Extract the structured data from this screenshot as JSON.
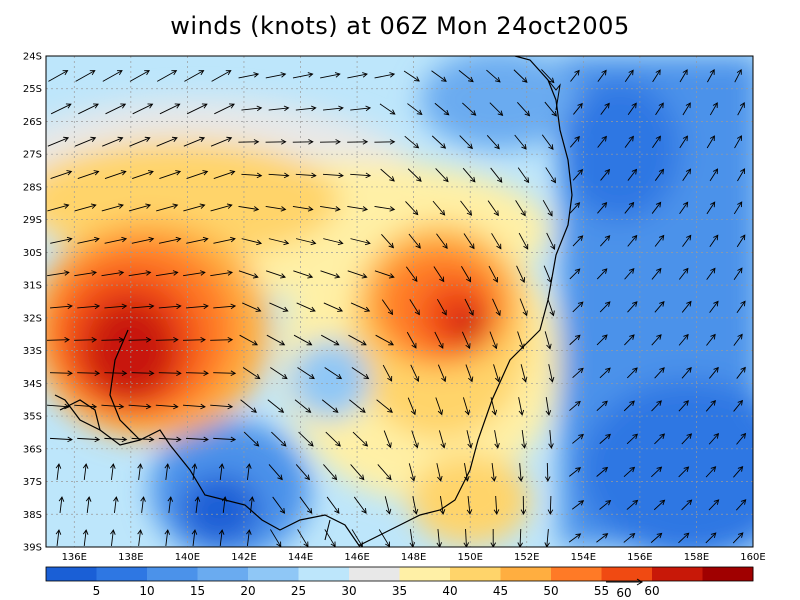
{
  "title": "winds (knots) at 06Z Mon 24oct2005",
  "lon_labels": [
    "136E",
    "138E",
    "140E",
    "142E",
    "144E",
    "146E",
    "148E",
    "150E",
    "152E",
    "154E",
    "156E",
    "158E",
    "160E"
  ],
  "lat_labels": [
    "24S",
    "25S",
    "26S",
    "27S",
    "28S",
    "29S",
    "30S",
    "31S",
    "32S",
    "33S",
    "34S",
    "35S",
    "36S",
    "37S",
    "38S",
    "39S"
  ],
  "lon_range": [
    135,
    160
  ],
  "lat_range": [
    -24,
    -39
  ],
  "colorbar": {
    "labels": [
      "5",
      "10",
      "15",
      "20",
      "25",
      "30",
      "35",
      "40",
      "45",
      "50",
      "55",
      "60"
    ],
    "colors": [
      "#1a5fd6",
      "#2e77e3",
      "#4b92ea",
      "#6aabf0",
      "#8fc7f6",
      "#bde6fb",
      "#e8e8e8",
      "#fff0a6",
      "#ffd46a",
      "#ffae40",
      "#ff7a26",
      "#f04a12",
      "#c81808",
      "#a00000"
    ],
    "vector_ref_label": "60"
  },
  "palette": {
    "land_line": "#000000",
    "grid_line": "#9a9a9a",
    "arrow": "#000000"
  }
}
